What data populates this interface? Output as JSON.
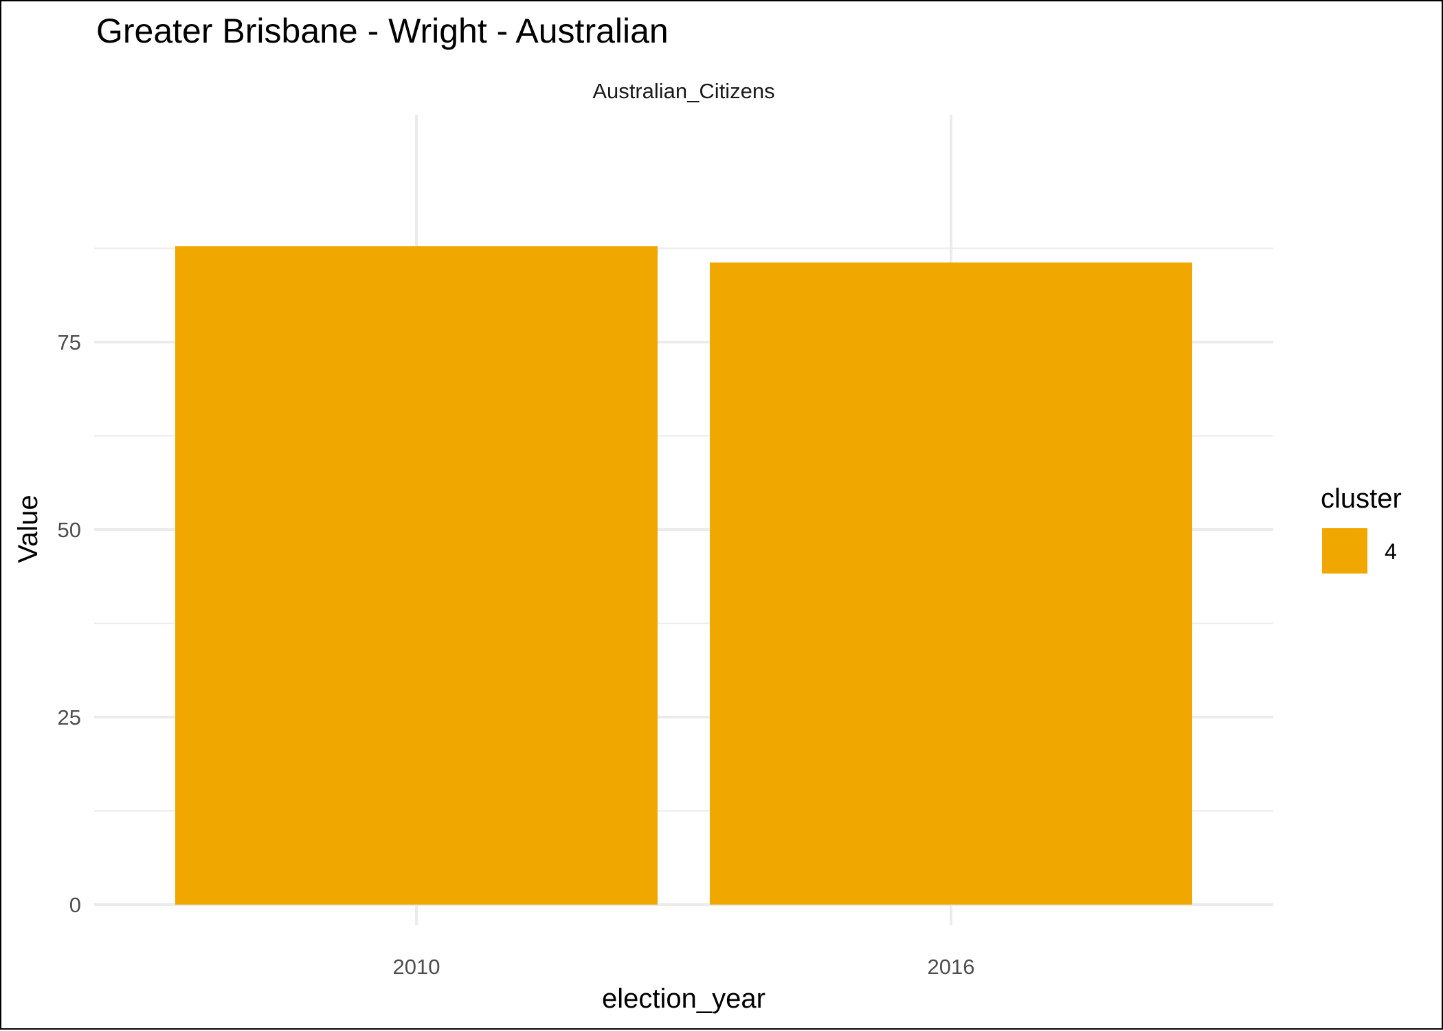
{
  "chart_data": {
    "type": "bar",
    "title": "Greater Brisbane - Wright - Australian",
    "facet_label": "Australian_Citizens",
    "xlabel": "election_year",
    "ylabel": "Value",
    "categories": [
      "2010",
      "2016"
    ],
    "series": [
      {
        "name": "4",
        "values": [
          87.8,
          85.6
        ]
      }
    ],
    "ylim": [
      0,
      90
    ],
    "y_ticks": [
      0,
      25,
      50,
      75
    ],
    "y_tick_labels": [
      "0",
      "25",
      "50",
      "75"
    ],
    "y_minor_ticks": [
      12.5,
      37.5,
      62.5,
      87.5
    ],
    "grid": true,
    "legend": {
      "title": "cluster",
      "position": "right",
      "entries": [
        {
          "label": "4",
          "color": "#F0A800"
        }
      ]
    },
    "colors": {
      "bar": "#F0A800",
      "grid": "#EBEBEB",
      "text": "#000000",
      "tick_text": "#4D4D4D"
    }
  }
}
